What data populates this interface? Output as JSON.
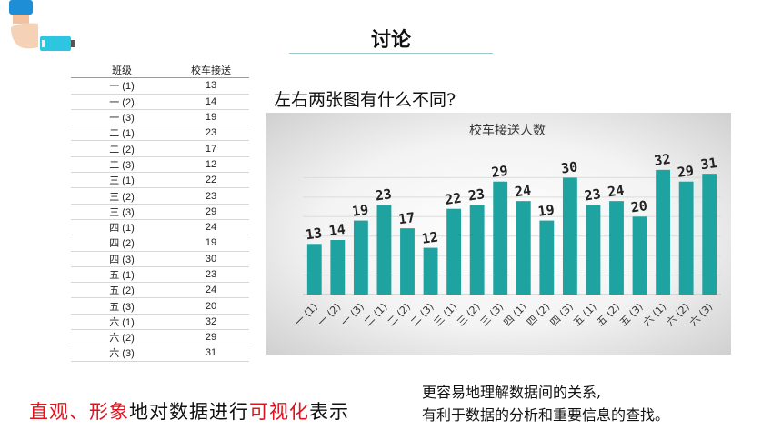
{
  "header": {
    "title": "讨论"
  },
  "table": {
    "headers": [
      "班级",
      "校车接送"
    ],
    "rows": [
      [
        "一 (1)",
        "13"
      ],
      [
        "一 (2)",
        "14"
      ],
      [
        "一 (3)",
        "19"
      ],
      [
        "二 (1)",
        "23"
      ],
      [
        "二 (2)",
        "17"
      ],
      [
        "二 (3)",
        "12"
      ],
      [
        "三 (1)",
        "22"
      ],
      [
        "三 (2)",
        "23"
      ],
      [
        "三 (3)",
        "29"
      ],
      [
        "四 (1)",
        "24"
      ],
      [
        "四 (2)",
        "19"
      ],
      [
        "四 (3)",
        "30"
      ],
      [
        "五 (1)",
        "23"
      ],
      [
        "五 (2)",
        "24"
      ],
      [
        "五 (3)",
        "20"
      ],
      [
        "六 (1)",
        "32"
      ],
      [
        "六 (2)",
        "29"
      ],
      [
        "六 (3)",
        "31"
      ]
    ]
  },
  "question": "左右两张图有什么不同?",
  "chart_data": {
    "type": "bar",
    "title": "校车接送人数",
    "categories": [
      "一 (1)",
      "一 (2)",
      "一 (3)",
      "二 (1)",
      "二 (2)",
      "二 (3)",
      "三 (1)",
      "三 (2)",
      "三 (3)",
      "四 (1)",
      "四 (2)",
      "四 (3)",
      "五 (1)",
      "五 (2)",
      "五 (3)",
      "六 (1)",
      "六 (2)",
      "六 (3)"
    ],
    "values": [
      13,
      14,
      19,
      23,
      17,
      12,
      22,
      23,
      29,
      24,
      19,
      30,
      23,
      24,
      20,
      32,
      29,
      31
    ],
    "ylim": [
      0,
      35
    ],
    "grid": true,
    "bar_color": "#1fa3a1",
    "data_labels": true
  },
  "bottom": {
    "phrase1": "直观、形象",
    "phrase2": "地对数据进行",
    "phrase3": "可视化",
    "phrase4": "表示",
    "line1": "更容易地理解数据间的关系,",
    "line2": "有利于数据的分析和重要信息的查找。"
  },
  "colors": {
    "accent_red": "#e0141e",
    "teal": "#1fa3a1"
  }
}
